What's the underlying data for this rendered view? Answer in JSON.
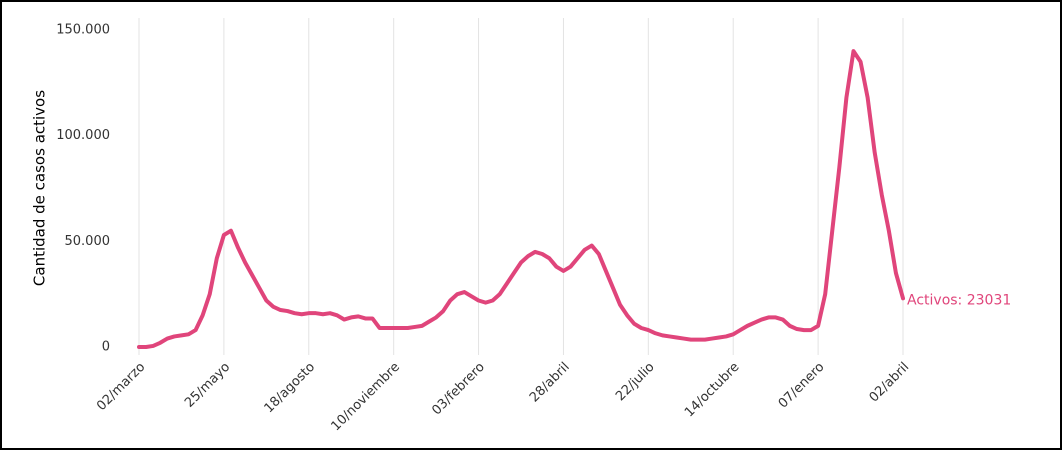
{
  "chart_data": {
    "type": "line",
    "y_label": "Cantidad de casos activos",
    "annotation": "Activos: 23031",
    "categories": [
      "02/marzo",
      null,
      null,
      null,
      null,
      null,
      null,
      null,
      null,
      null,
      null,
      null,
      "25/mayo",
      null,
      null,
      null,
      null,
      null,
      null,
      null,
      null,
      null,
      null,
      null,
      "18/agosto",
      null,
      null,
      null,
      null,
      null,
      null,
      null,
      null,
      null,
      null,
      null,
      "10/noviembre",
      null,
      null,
      null,
      null,
      null,
      null,
      null,
      null,
      null,
      null,
      null,
      "03/febrero",
      null,
      null,
      null,
      null,
      null,
      null,
      null,
      null,
      null,
      null,
      null,
      "28/abril",
      null,
      null,
      null,
      null,
      null,
      null,
      null,
      null,
      null,
      null,
      null,
      "22/julio",
      null,
      null,
      null,
      null,
      null,
      null,
      null,
      null,
      null,
      null,
      null,
      "14/octubre",
      null,
      null,
      null,
      null,
      null,
      null,
      null,
      null,
      null,
      null,
      null,
      "07/enero",
      null,
      null,
      null,
      null,
      null,
      null,
      null,
      null,
      null,
      null,
      null,
      "02/abril"
    ],
    "series": [
      {
        "name": "Activos",
        "color": "#e0457b",
        "values": [
          0,
          0,
          500,
          2000,
          4000,
          5000,
          5500,
          6000,
          8000,
          15000,
          25000,
          42000,
          53000,
          55000,
          47000,
          40000,
          34000,
          28000,
          22000,
          19000,
          17500,
          17000,
          16000,
          15500,
          16000,
          16000,
          15500,
          16000,
          15000,
          13000,
          14000,
          14500,
          13500,
          13500,
          9000,
          9000,
          9000,
          9000,
          9000,
          9500,
          10000,
          12000,
          14000,
          17000,
          22000,
          25000,
          26000,
          24000,
          22000,
          21000,
          22000,
          25000,
          30000,
          35000,
          40000,
          43000,
          45000,
          44000,
          42000,
          38000,
          36000,
          38000,
          42000,
          46000,
          48000,
          44000,
          36000,
          28000,
          20000,
          15000,
          11000,
          9000,
          8000,
          6500,
          5500,
          5000,
          4500,
          4000,
          3500,
          3500,
          3500,
          4000,
          4500,
          5000,
          6000,
          8000,
          10000,
          11500,
          13000,
          14000,
          14000,
          13000,
          10000,
          8500,
          8000,
          8000,
          10000,
          25000,
          55000,
          85000,
          118000,
          140000,
          135000,
          118000,
          92000,
          72000,
          55000,
          35000,
          23031
        ]
      }
    ],
    "ylim": [
      0,
      150000
    ],
    "yticks": [
      0,
      {
        "value": 50000,
        "label": "50.000"
      },
      {
        "value": 100000,
        "label": "100.000"
      },
      {
        "value": 150000,
        "label": "150.000"
      }
    ],
    "grid": true
  }
}
